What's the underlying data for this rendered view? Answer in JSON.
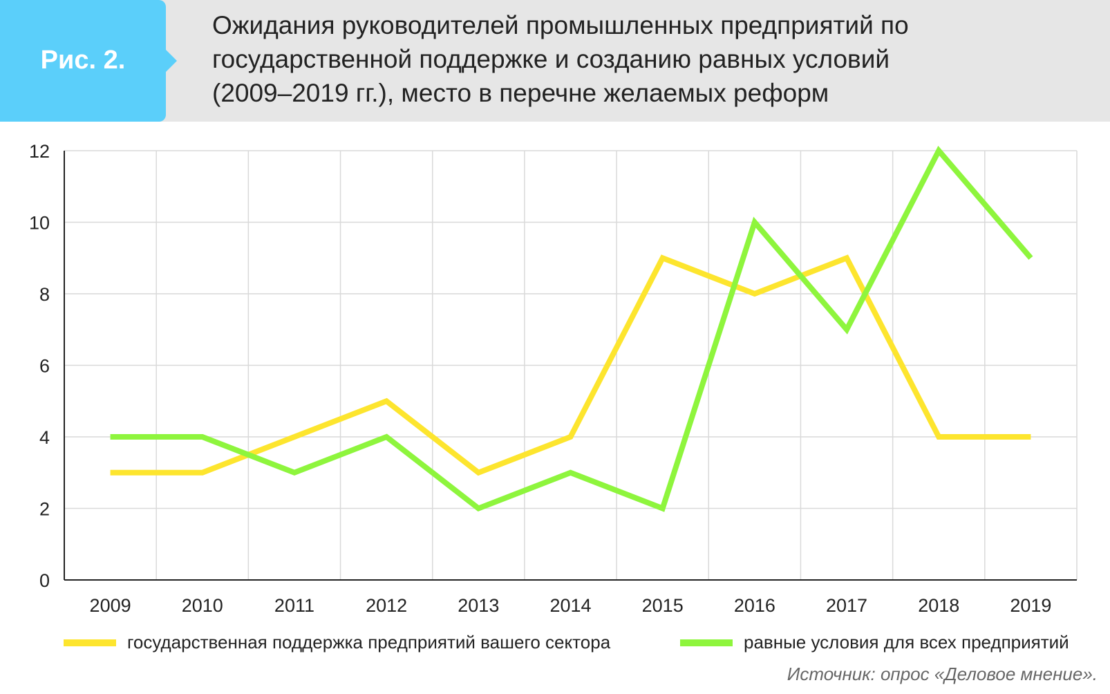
{
  "figure": {
    "label": "Рис. 2.",
    "title_lines": [
      "Ожидания руководителей промышленных предприятий по",
      "государственной поддержке и созданию равных условий",
      "(2009–2019 гг.), место в перечне желаемых реформ"
    ],
    "source": "Источник: опрос «Деловое мнение»."
  },
  "colors": {
    "header_bg": "#e6e6e6",
    "tab": "#5bcffa",
    "series_yellow": "#fde52e",
    "series_green": "#8ef53d",
    "grid": "#d9d9d9",
    "axis": "#222222"
  },
  "chart_data": {
    "type": "line",
    "title": "Ожидания руководителей промышленных предприятий по государственной поддержке и созданию равных условий (2009–2019 гг.), место в перечне желаемых реформ",
    "x": [
      "2009",
      "2010",
      "2011",
      "2012",
      "2013",
      "2014",
      "2015",
      "2016",
      "2017",
      "2018",
      "2019"
    ],
    "ylim": [
      0,
      12
    ],
    "yticks": [
      0,
      2,
      4,
      6,
      8,
      10,
      12
    ],
    "grid": true,
    "legend_position": "bottom",
    "series": [
      {
        "name": "государственная поддержка предприятий вашего сектора",
        "color": "#fde52e",
        "values": [
          3,
          3,
          4,
          5,
          3,
          4,
          9,
          8,
          9,
          4,
          4
        ]
      },
      {
        "name": "равные условия для всех предприятий",
        "color": "#8ef53d",
        "values": [
          4,
          4,
          3,
          4,
          2,
          3,
          2,
          10,
          7,
          12,
          9
        ]
      }
    ]
  }
}
